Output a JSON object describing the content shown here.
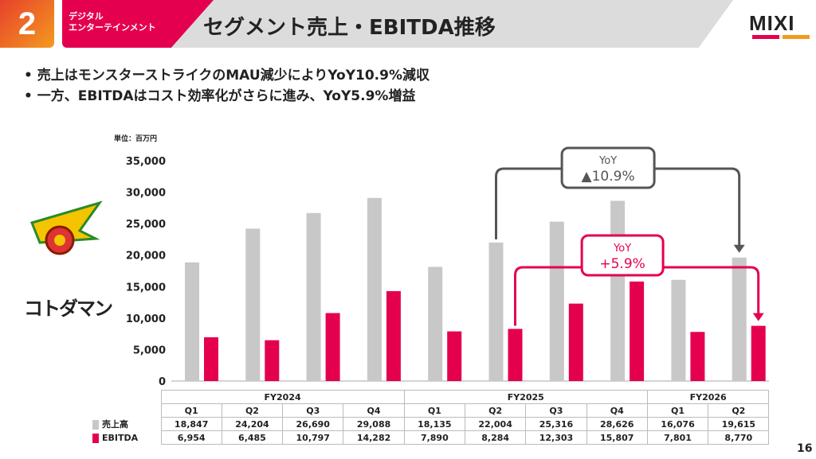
{
  "header": {
    "section_number": "2",
    "segment": [
      "デジタル",
      "エンターテインメント"
    ],
    "title": "セグメント売上・EBITDA推移",
    "logo": "MIXI"
  },
  "bullets": [
    "売上はモンスターストライクのMAU減少によりYoY10.9%減収",
    "一方、EBITDAはコスト効率化がさらに進み、YoY5.9%増益"
  ],
  "brands": {
    "brand1": "モンスターストライク",
    "brand2": "コトダマン"
  },
  "page_number": "16",
  "colors": {
    "sales": "#c8c8c8",
    "ebitda": "#e5004f",
    "accent_orange": "#f39a1e",
    "annotation_gray": "#555555"
  },
  "chart_data": {
    "type": "bar",
    "unit_label": "単位：百万円",
    "years": [
      {
        "label": "FY2024",
        "span": 4
      },
      {
        "label": "FY2025",
        "span": 4
      },
      {
        "label": "FY2026",
        "span": 2
      }
    ],
    "categories": [
      "Q1",
      "Q2",
      "Q3",
      "Q4",
      "Q1",
      "Q2",
      "Q3",
      "Q4",
      "Q1",
      "Q2"
    ],
    "series": [
      {
        "name": "売上高",
        "values": [
          18847,
          24204,
          26690,
          29088,
          18135,
          22004,
          25316,
          28626,
          16076,
          19615
        ],
        "display": [
          "18,847",
          "24,204",
          "26,690",
          "29,088",
          "18,135",
          "22,004",
          "25,316",
          "28,626",
          "16,076",
          "19,615"
        ]
      },
      {
        "name": "EBITDA",
        "values": [
          6954,
          6485,
          10797,
          14282,
          7890,
          8284,
          12303,
          15807,
          7801,
          8770
        ],
        "display": [
          "6,954",
          "6,485",
          "10,797",
          "14,282",
          "7,890",
          "8,284",
          "12,303",
          "15,807",
          "7,801",
          "8,770"
        ]
      }
    ],
    "ylim": [
      0,
      35000
    ],
    "yticks": [
      "0",
      "5,000",
      "10,000",
      "15,000",
      "20,000",
      "25,000",
      "30,000",
      "35,000"
    ],
    "annotations": [
      {
        "label": "YoY",
        "value": "▲10.9%",
        "series": "売上高",
        "from_index": 5,
        "to_index": 9
      },
      {
        "label": "YoY",
        "value": "+5.9%",
        "series": "EBITDA",
        "from_index": 5,
        "to_index": 9
      }
    ]
  }
}
